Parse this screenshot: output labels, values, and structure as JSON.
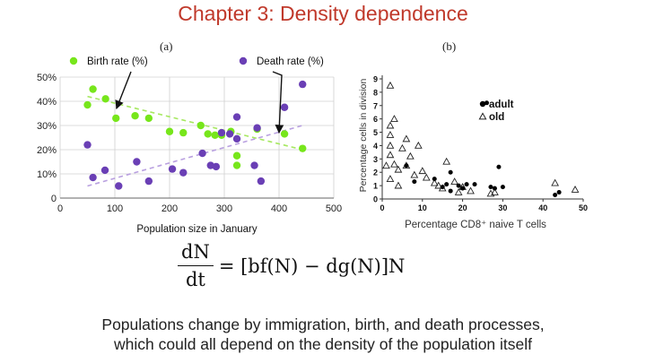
{
  "slide": {
    "title": "Chapter 3: Density dependence",
    "caption_line1": "Populations change by immigration, birth, and death processes,",
    "caption_line2": "which could all depend on the density of the population itself"
  },
  "equation": {
    "numerator": "dN",
    "denominator": "dt",
    "rhs": "= [bf(N) − dg(N)]N"
  },
  "colors": {
    "title": "#c0392b",
    "birth": "#77e61b",
    "death": "#6a3fb5",
    "birth_trend": "#a6e860",
    "death_trend": "#b9a0e0"
  },
  "chart_data": [
    {
      "panel_label": "(a)",
      "type": "scatter",
      "xlabel": "Population size in January",
      "ylabel": "",
      "xlim": [
        0,
        500
      ],
      "ylim": [
        0,
        50
      ],
      "x_ticks": [
        "0",
        "100",
        "200",
        "300",
        "400",
        "500"
      ],
      "y_ticks": [
        "0",
        "10%",
        "20%",
        "30%",
        "40%",
        "50%"
      ],
      "legend_position": "top",
      "series": [
        {
          "name": "Birth rate (%)",
          "color": "#77e61b",
          "points": [
            [
              50,
              38.5
            ],
            [
              60,
              45
            ],
            [
              83,
              41
            ],
            [
              102,
              33
            ],
            [
              137,
              34
            ],
            [
              162,
              33
            ],
            [
              200,
              27.5
            ],
            [
              225,
              27
            ],
            [
              257,
              30
            ],
            [
              270,
              26.5
            ],
            [
              283,
              26
            ],
            [
              295,
              26
            ],
            [
              312,
              27.5
            ],
            [
              323,
              17.5
            ],
            [
              323,
              13.5
            ],
            [
              360,
              28.5
            ],
            [
              410,
              26.5
            ],
            [
              443,
              20.5
            ]
          ]
        },
        {
          "name": "Death rate (%)",
          "color": "#6a3fb5",
          "points": [
            [
              50,
              22
            ],
            [
              60,
              8.5
            ],
            [
              82,
              11.5
            ],
            [
              107,
              5
            ],
            [
              140,
              15
            ],
            [
              162,
              7
            ],
            [
              205,
              12
            ],
            [
              225,
              10.5
            ],
            [
              260,
              18.5
            ],
            [
              275,
              13.5
            ],
            [
              285,
              13
            ],
            [
              295,
              27
            ],
            [
              310,
              26.5
            ],
            [
              323,
              33.5
            ],
            [
              323,
              24.5
            ],
            [
              355,
              13.5
            ],
            [
              360,
              29
            ],
            [
              367,
              7
            ],
            [
              410,
              37.5
            ],
            [
              443,
              47
            ]
          ]
        }
      ],
      "trendlines": [
        {
          "series": "Birth rate (%)",
          "x": [
            50,
            443
          ],
          "y": [
            42,
            20
          ]
        },
        {
          "series": "Death rate (%)",
          "x": [
            50,
            443
          ],
          "y": [
            5,
            30
          ]
        }
      ],
      "annotations": [
        {
          "text": "",
          "kind": "arrow",
          "from_series": "Birth rate (%)",
          "to": [
            103,
            37
          ]
        },
        {
          "text": "",
          "kind": "arrow",
          "from_series": "Death rate (%)",
          "to": [
            400,
            27
          ]
        }
      ]
    },
    {
      "panel_label": "(b)",
      "type": "scatter",
      "xlabel": "Percentage CD8⁺ naive T cells",
      "ylabel": "Percentage cells in division",
      "xlim": [
        0,
        50
      ],
      "ylim": [
        0,
        9
      ],
      "x_ticks": [
        "0",
        "10",
        "20",
        "30",
        "40",
        "50"
      ],
      "y_ticks": [
        "0",
        "1",
        "2",
        "3",
        "4",
        "5",
        "6",
        "7",
        "8",
        "9"
      ],
      "legend_position": "top-right",
      "series": [
        {
          "name": "adult",
          "marker": "filled-circle",
          "points": [
            [
              8,
              1.3
            ],
            [
              13,
              1.5
            ],
            [
              16,
              1.1
            ],
            [
              17,
              2.0
            ],
            [
              19,
              1.0
            ],
            [
              20,
              0.8
            ],
            [
              21,
              1.1
            ],
            [
              23,
              1.1
            ],
            [
              26,
              7.2
            ],
            [
              27,
              0.9
            ],
            [
              28,
              0.8
            ],
            [
              29,
              2.4
            ],
            [
              30,
              0.9
            ],
            [
              43,
              0.3
            ],
            [
              44,
              0.5
            ],
            [
              6,
              2.5
            ],
            [
              15,
              0.9
            ],
            [
              17,
              0.6
            ]
          ]
        },
        {
          "name": "old",
          "marker": "open-triangle",
          "points": [
            [
              2,
              8.5
            ],
            [
              3,
              6.0
            ],
            [
              2,
              5.5
            ],
            [
              2,
              4.8
            ],
            [
              2,
              4.0
            ],
            [
              2,
              3.3
            ],
            [
              3,
              2.6
            ],
            [
              4,
              2.2
            ],
            [
              5,
              3.8
            ],
            [
              6,
              2.5
            ],
            [
              6,
              4.5
            ],
            [
              7,
              3.2
            ],
            [
              8,
              1.8
            ],
            [
              9,
              4.0
            ],
            [
              10,
              2.1
            ],
            [
              11,
              1.6
            ],
            [
              13,
              1.2
            ],
            [
              14,
              1.0
            ],
            [
              15,
              0.8
            ],
            [
              16,
              2.8
            ],
            [
              18,
              1.3
            ],
            [
              19,
              0.5
            ],
            [
              20,
              0.9
            ],
            [
              22,
              0.6
            ],
            [
              27,
              0.4
            ],
            [
              28,
              0.5
            ],
            [
              2,
              1.5
            ],
            [
              4,
              1.0
            ],
            [
              1,
              2.5
            ],
            [
              43,
              1.2
            ],
            [
              48,
              0.7
            ]
          ]
        }
      ]
    }
  ]
}
